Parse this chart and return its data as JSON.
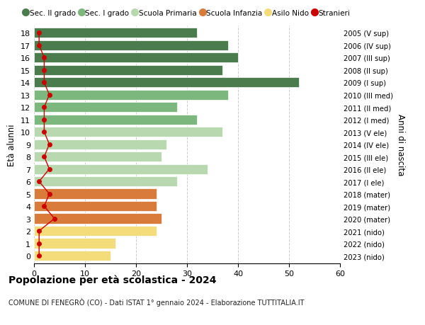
{
  "ages": [
    18,
    17,
    16,
    15,
    14,
    13,
    12,
    11,
    10,
    9,
    8,
    7,
    6,
    5,
    4,
    3,
    2,
    1,
    0
  ],
  "years": [
    "2005 (V sup)",
    "2006 (IV sup)",
    "2007 (III sup)",
    "2008 (II sup)",
    "2009 (I sup)",
    "2010 (III med)",
    "2011 (II med)",
    "2012 (I med)",
    "2013 (V ele)",
    "2014 (IV ele)",
    "2015 (III ele)",
    "2016 (II ele)",
    "2017 (I ele)",
    "2018 (mater)",
    "2019 (mater)",
    "2020 (mater)",
    "2021 (nido)",
    "2022 (nido)",
    "2023 (nido)"
  ],
  "values": [
    32,
    38,
    40,
    37,
    52,
    38,
    28,
    32,
    37,
    26,
    25,
    34,
    28,
    24,
    24,
    25,
    24,
    16,
    15
  ],
  "stranieri": [
    1,
    1,
    2,
    2,
    2,
    3,
    2,
    2,
    2,
    3,
    2,
    3,
    1,
    3,
    2,
    4,
    1,
    1,
    1
  ],
  "bar_colors": [
    "#4a7c4e",
    "#4a7c4e",
    "#4a7c4e",
    "#4a7c4e",
    "#4a7c4e",
    "#7cb87e",
    "#7cb87e",
    "#7cb87e",
    "#b8d9b0",
    "#b8d9b0",
    "#b8d9b0",
    "#b8d9b0",
    "#b8d9b0",
    "#d97b3a",
    "#d97b3a",
    "#d97b3a",
    "#f5dc7a",
    "#f5dc7a",
    "#f5dc7a"
  ],
  "legend_labels": [
    "Sec. II grado",
    "Sec. I grado",
    "Scuola Primaria",
    "Scuola Infanzia",
    "Asilo Nido",
    "Stranieri"
  ],
  "legend_colors": [
    "#4a7c4e",
    "#7cb87e",
    "#b8d9b0",
    "#d97b3a",
    "#f5dc7a",
    "#cc0000"
  ],
  "title": "Popolazione per età scolastica - 2024",
  "subtitle": "COMUNE DI FENEGRÒ (CO) - Dati ISTAT 1° gennaio 2024 - Elaborazione TUTTITALIA.IT",
  "ylabel": "Età alunni",
  "right_ylabel": "Anni di nascita",
  "xlim": [
    0,
    60
  ],
  "xticks": [
    0,
    10,
    20,
    30,
    40,
    50,
    60
  ],
  "background_color": "#ffffff",
  "grid_color": "#cccccc",
  "bar_height": 0.82,
  "stranieri_color": "#cc0000"
}
